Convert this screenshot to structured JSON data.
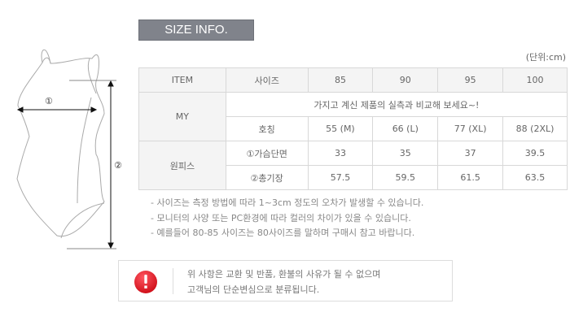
{
  "title": "SIZE INFO.",
  "unit": "(단위:cm)",
  "figure": {
    "label1": "①",
    "label2": "②"
  },
  "table": {
    "header": [
      "ITEM",
      "사이즈",
      "85",
      "90",
      "95",
      "100"
    ],
    "my_label": "MY",
    "my_message": "가지고 계신 제품의 실측과 비교해 보세요~!",
    "nickname_row": [
      "호칭",
      "55 (M)",
      "66 (L)",
      "77 (XL)",
      "88 (2XL)"
    ],
    "onepiece_label": "원피스",
    "rows": [
      [
        "①가슴단면",
        "33",
        "35",
        "37",
        "39.5"
      ],
      [
        "②총기장",
        "57.5",
        "59.5",
        "61.5",
        "63.5"
      ]
    ]
  },
  "notes": [
    "- 사이즈는 측정 방법에 따라 1~3cm 정도의 오차가 발생할 수 있습니다.",
    "- 모니터의 사양 또는 PC환경에 따라 컬러의 차이가 있을 수 있습니다.",
    "- 예를들어 80-85 사이즈는 80사이즈를 말하며 구매시 참고 바랍니다."
  ],
  "notice": {
    "icon": "exclamation-icon",
    "line1": "위 사항은 교환 및 반품, 환불의 사유가 될 수 없으며",
    "line2": "고객님의 단순변심으로 분류됩니다.",
    "color": "#e0141e"
  }
}
